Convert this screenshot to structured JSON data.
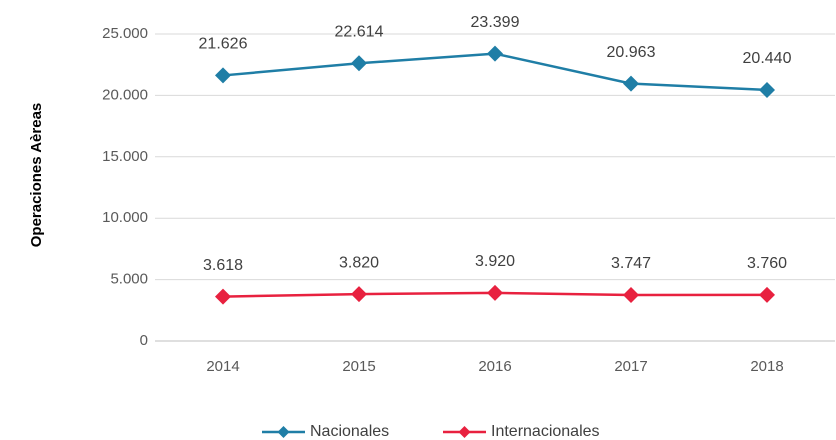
{
  "chart_data": {
    "type": "line",
    "y_label": "Operaciones Aèreas",
    "categories": [
      "2014",
      "2015",
      "2016",
      "2017",
      "2018"
    ],
    "series": [
      {
        "name": "Nacionales",
        "color": "#1f7ea6",
        "values": [
          21626,
          22614,
          23399,
          20963,
          20440
        ],
        "value_labels": [
          "21.626",
          "22.614",
          "23.399",
          "20.963",
          "20.440"
        ]
      },
      {
        "name": "Internacionales",
        "color": "#e8213f",
        "values": [
          3618,
          3820,
          3920,
          3747,
          3760
        ],
        "value_labels": [
          "3.618",
          "3.820",
          "3.920",
          "3.747",
          "3.760"
        ]
      }
    ],
    "ylim": [
      0,
      25000
    ],
    "yticks": [
      0,
      {
        "value": 5000,
        "label": "5.000"
      },
      {
        "value": 10000,
        "label": "10.000"
      },
      {
        "value": 15000,
        "label": "15.000"
      },
      {
        "value": 20000,
        "label": "20.000"
      },
      {
        "value": 25000,
        "label": "25.000"
      }
    ],
    "grid": true,
    "legend": "bottom"
  }
}
